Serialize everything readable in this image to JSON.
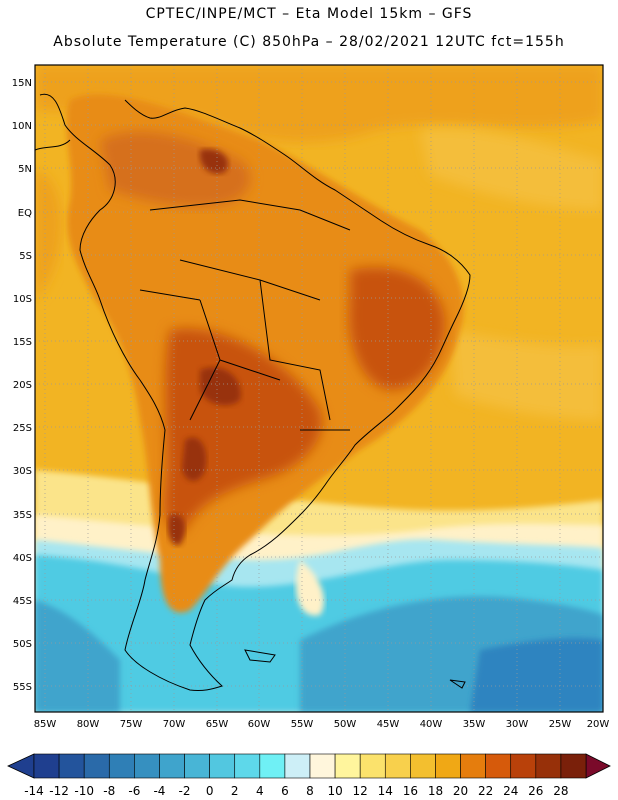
{
  "header": {
    "line1": "CPTEC/INPE/MCT –  Eta Model 15km – GFS",
    "line2": "Absolute Temperature (C) 850hPa – 28/02/2021 12UTC fct=155h"
  },
  "axes": {
    "lat_labels": [
      "15N",
      "10N",
      "5N",
      "EQ",
      "5S",
      "10S",
      "15S",
      "20S",
      "25S",
      "30S",
      "35S",
      "40S",
      "45S",
      "50S",
      "55S"
    ],
    "lon_labels": [
      "85W",
      "80W",
      "75W",
      "70W",
      "65W",
      "60W",
      "55W",
      "50W",
      "45W",
      "40W",
      "35W",
      "30W",
      "25W",
      "20W"
    ]
  },
  "colorbar": {
    "labels": [
      "-14",
      "-12",
      "-10",
      "-8",
      "-6",
      "-4",
      "-2",
      "0",
      "2",
      "4",
      "6",
      "8",
      "10",
      "12",
      "14",
      "16",
      "18",
      "20",
      "22",
      "24",
      "26",
      "28"
    ],
    "colors": [
      "#1f3f8f",
      "#23549c",
      "#2a6aa9",
      "#2f7fb6",
      "#3690c0",
      "#3fa4cc",
      "#48b5d6",
      "#52c7e0",
      "#5ed8ea",
      "#6ff0f5",
      "#cdeff7",
      "#fff6dc",
      "#fff59d",
      "#fbe26c",
      "#f8d04c",
      "#f3bf2f",
      "#f0a815",
      "#e57d0d",
      "#d65a0b",
      "#b9410a",
      "#973009",
      "#7a200a"
    ]
  },
  "colors": {
    "ocean_warm": "#f2b423",
    "ocean_hot": "#eea11c",
    "land_warm": "#e88c16",
    "land_hot": "#c8520e",
    "core_hot": "#983310",
    "pale": "#fff1c8",
    "light_yellow": "#fbe48a",
    "cold_cyan": "#4fcbe3",
    "cold_blue": "#2f84c0",
    "coast_line": "#000000"
  }
}
